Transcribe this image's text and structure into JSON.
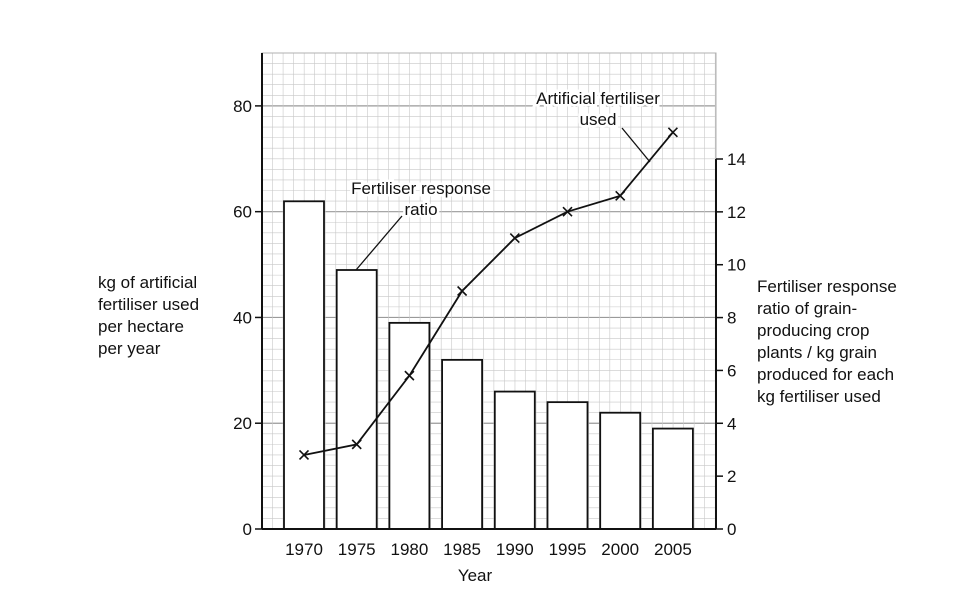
{
  "chart_data": {
    "type": "bar",
    "categories": [
      "1970",
      "1975",
      "1980",
      "1985",
      "1990",
      "1995",
      "2000",
      "2005"
    ],
    "series": [
      {
        "name": "Fertiliser response ratio",
        "kind": "bar",
        "axis": "right",
        "values": [
          12.4,
          9.8,
          7.8,
          6.4,
          5.2,
          4.8,
          4.4,
          3.8
        ]
      },
      {
        "name": "Artificial fertiliser used",
        "kind": "line",
        "axis": "left",
        "marker": "x",
        "values": [
          14,
          16,
          29,
          45,
          55,
          60,
          63,
          75
        ]
      }
    ],
    "xlabel": "Year",
    "ylabel_left_lines": [
      "kg of artificial",
      "fertiliser used",
      "per hectare",
      "per year"
    ],
    "ylabel_right_lines": [
      "Fertiliser response",
      "ratio of grain-",
      "producing crop",
      "plants / kg grain",
      "produced for each",
      "kg fertiliser used"
    ],
    "y_left": {
      "min": 0,
      "max": 90,
      "ticks": [
        0,
        20,
        40,
        60,
        80
      ]
    },
    "y_right": {
      "min": 0,
      "max": 14,
      "ticks": [
        0,
        2,
        4,
        6,
        8,
        10,
        12,
        14
      ]
    },
    "annotations": {
      "line_label_lines": [
        "Artificial fertiliser",
        "used"
      ],
      "bar_label_lines": [
        "Fertiliser response",
        "ratio"
      ]
    },
    "grid": true,
    "colors": {
      "axis": "#111111",
      "grid_minor": "#c8c8c8",
      "grid_major": "#9a9a9a",
      "bar_fill": "#ffffff"
    }
  }
}
